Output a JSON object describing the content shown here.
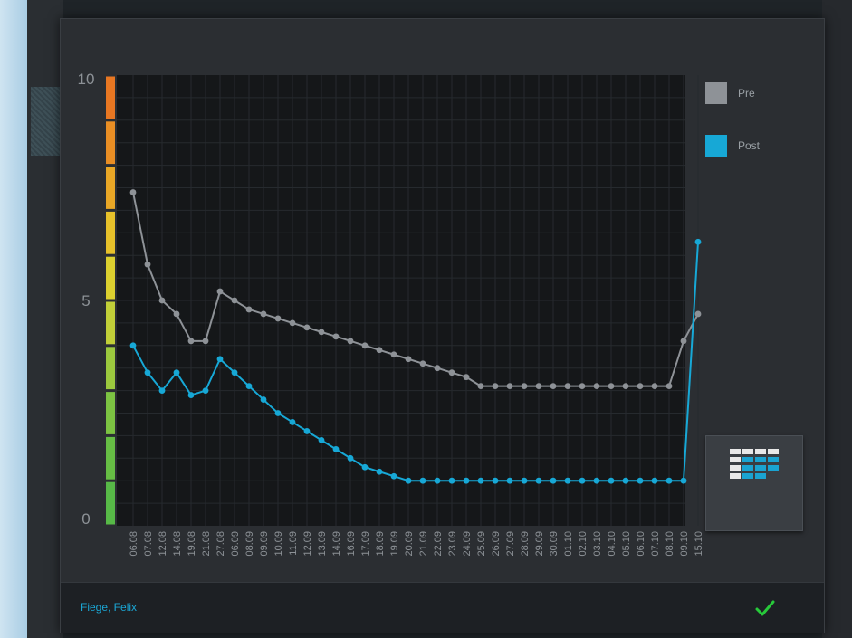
{
  "chart_data": {
    "type": "line",
    "ylim": [
      0,
      10
    ],
    "y_ticks": [
      "0",
      "5",
      "10"
    ],
    "grid": true,
    "legend_position": "right",
    "categories": [
      "06.08",
      "07.08",
      "12.08",
      "14.08",
      "19.08",
      "21.08",
      "27.08",
      "06.09",
      "08.09",
      "09.09",
      "10.09",
      "11.09",
      "12.09",
      "13.09",
      "14.09",
      "16.09",
      "17.09",
      "18.09",
      "19.09",
      "20.09",
      "21.09",
      "22.09",
      "23.09",
      "24.09",
      "25.09",
      "26.09",
      "27.09",
      "28.09",
      "29.09",
      "30.09",
      "01.10",
      "02.10",
      "03.10",
      "04.10",
      "05.10",
      "06.10",
      "07.10",
      "08.10",
      "09.10",
      "15.10"
    ],
    "series": [
      {
        "name": "Pre",
        "color": "#8e9297",
        "values": [
          7.4,
          5.8,
          5.0,
          4.7,
          4.1,
          4.1,
          5.2,
          5.0,
          4.8,
          4.7,
          4.6,
          4.5,
          4.4,
          4.3,
          4.2,
          4.1,
          4.0,
          3.9,
          3.8,
          3.7,
          3.6,
          3.5,
          3.4,
          3.3,
          3.1,
          3.1,
          3.1,
          3.1,
          3.1,
          3.1,
          3.1,
          3.1,
          3.1,
          3.1,
          3.1,
          3.1,
          3.1,
          3.1,
          4.1,
          4.7
        ]
      },
      {
        "name": "Post",
        "color": "#17a8d6",
        "values": [
          4.0,
          3.4,
          3.0,
          3.4,
          2.9,
          3.0,
          3.7,
          3.4,
          3.1,
          2.8,
          2.5,
          2.3,
          2.1,
          1.9,
          1.7,
          1.5,
          1.3,
          1.2,
          1.1,
          1.0,
          1.0,
          1.0,
          1.0,
          1.0,
          1.0,
          1.0,
          1.0,
          1.0,
          1.0,
          1.0,
          1.0,
          1.0,
          1.0,
          1.0,
          1.0,
          1.0,
          1.0,
          1.0,
          1.0,
          6.3
        ]
      }
    ],
    "scale_colors": [
      "#57b947",
      "#66bd44",
      "#7cc342",
      "#9cc93e",
      "#c1cf38",
      "#dcd02f",
      "#e7c12a",
      "#e9a726",
      "#e98e24",
      "#e87722"
    ]
  },
  "footer": {
    "patient_name": "Fiege, Felix",
    "confirm_icon": "checkmark-icon",
    "confirm_color": "#27c93a"
  },
  "table_button": {
    "icon": "table-view-icon"
  }
}
